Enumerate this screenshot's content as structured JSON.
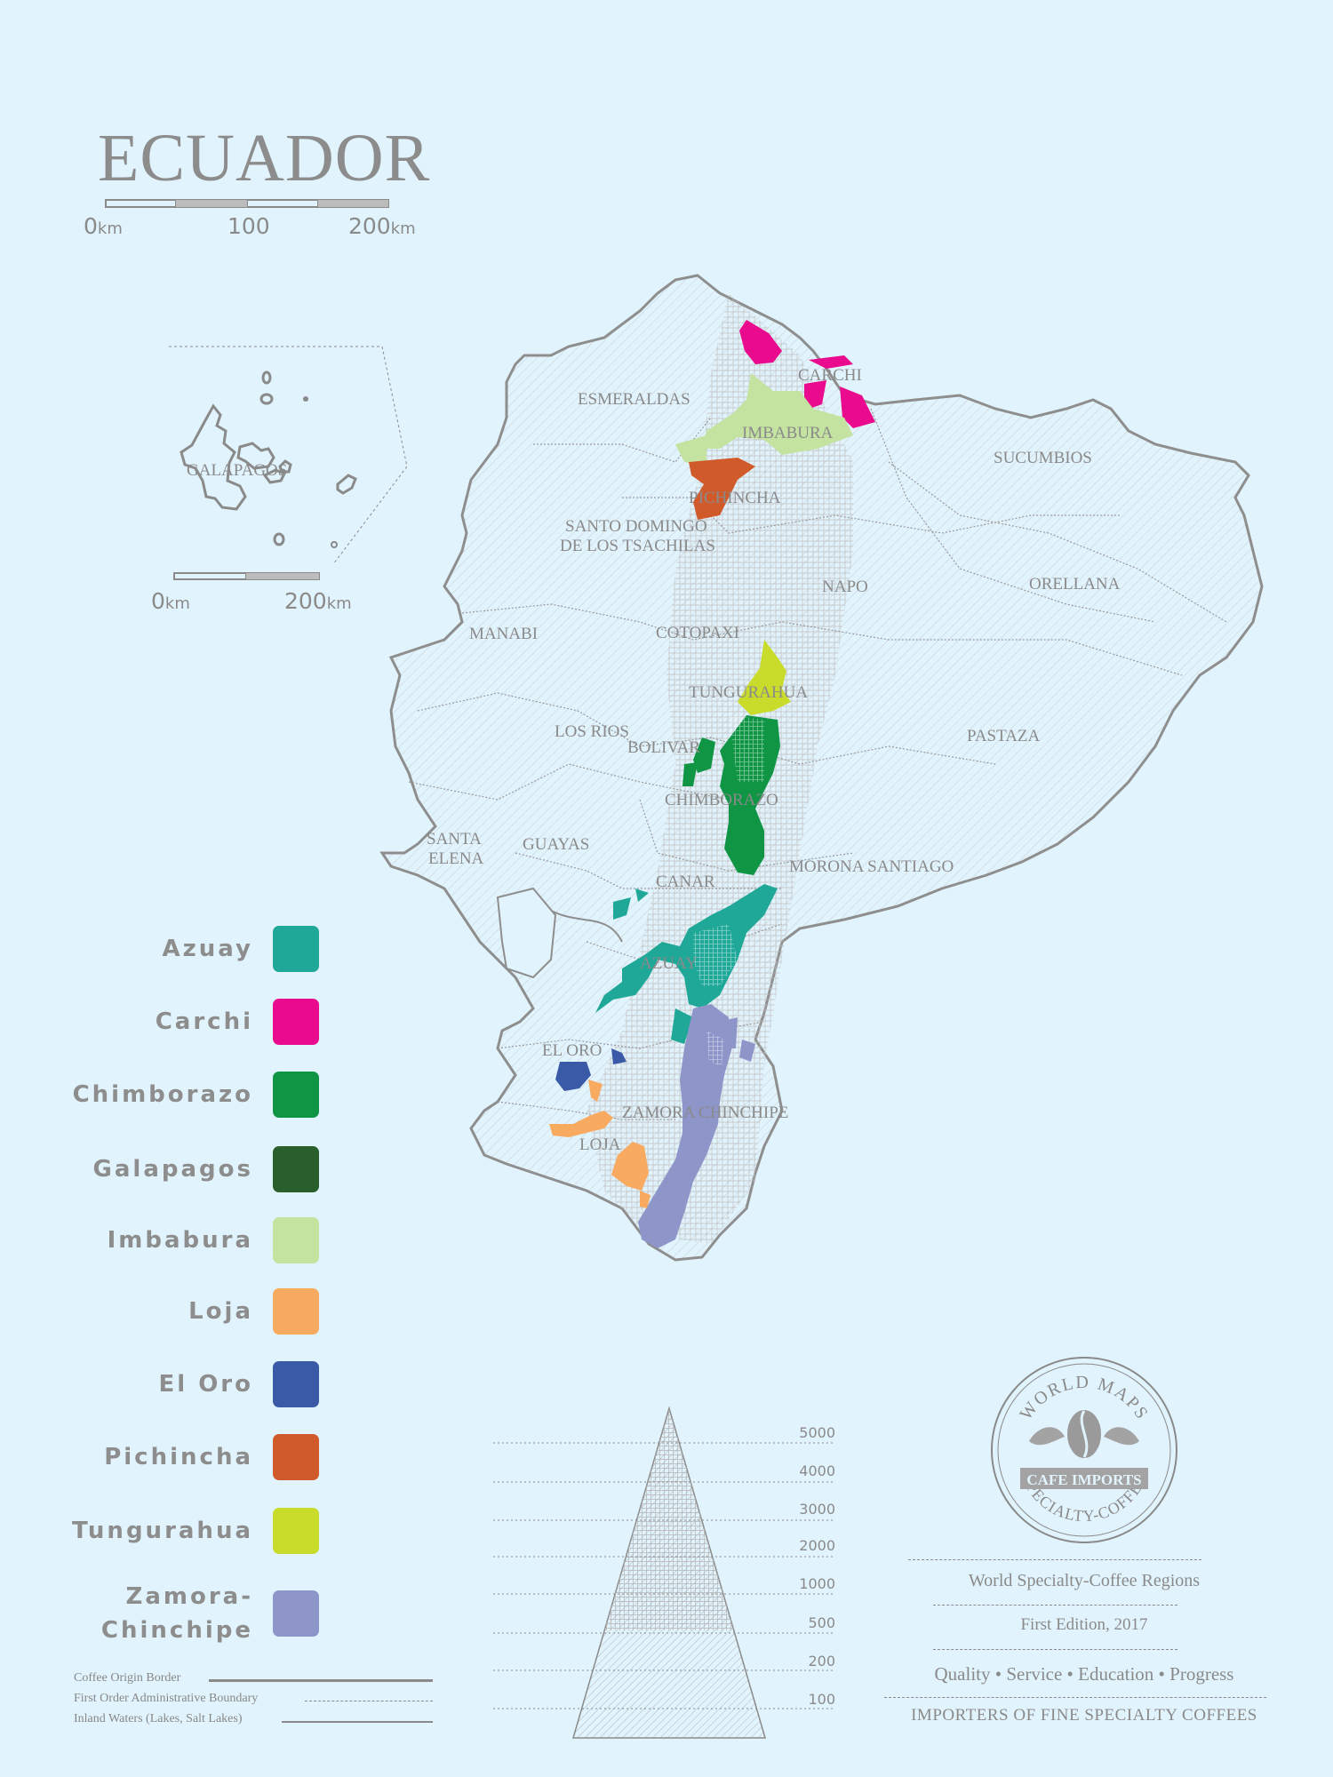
{
  "map": {
    "title": "ECUADOR",
    "scale_main": {
      "start": "0",
      "mid": "100",
      "end": "200",
      "unit": "km"
    },
    "scale_inset": {
      "start": "0",
      "end": "200",
      "unit": "km"
    },
    "inset_label": "GALAPAGOS",
    "provinces": [
      "ESMERALDAS",
      "CARCHI",
      "IMBABURA",
      "SUCUMBIOS",
      "PICHINCHA",
      "SANTO DOMINGO",
      "DE LOS TSACHILAS",
      "NAPO",
      "ORELLANA",
      "MANABI",
      "COTOPAXI",
      "TUNGURAHUA",
      "LOS RIOS",
      "BOLIVAR",
      "PASTAZA",
      "CHIMBORAZO",
      "SANTA",
      "ELENA",
      "GUAYAS",
      "CANAR",
      "MORONA SANTIAGO",
      "AZUAY",
      "EL ORO",
      "ZAMORA CHINCHIPE",
      "LOJA"
    ]
  },
  "legend": [
    {
      "label": "Azuay",
      "color": "#1fa898"
    },
    {
      "label": "Carchi",
      "color": "#ea0a8e"
    },
    {
      "label": "Chimborazo",
      "color": "#0f9544"
    },
    {
      "label": "Galapagos",
      "color": "#2a5e2d"
    },
    {
      "label": "Imbabura",
      "color": "#c4e3a0"
    },
    {
      "label": "Loja",
      "color": "#f9aa61"
    },
    {
      "label": "El Oro",
      "color": "#3a5aa8"
    },
    {
      "label": "Pichincha",
      "color": "#d15a2a"
    },
    {
      "label": "Tungurahua",
      "color": "#c9dc2c"
    },
    {
      "label": "Zamora-\nChinchipe",
      "color": "#8e95c9"
    }
  ],
  "line_key": [
    "Coffee Origin Border",
    "First Order Administrative Boundary",
    "Inland Waters (Lakes, Salt Lakes)"
  ],
  "elevation_labels": [
    "5000",
    "4000",
    "3000",
    "2000",
    "1000",
    "500",
    "200",
    "100"
  ],
  "badge": {
    "top": "WORLD MAPS",
    "center": "CAFE IMPORTS",
    "bottom": "SPECIALTY-COFFEE"
  },
  "info": {
    "line1": "World Specialty-Coffee Regions",
    "line2": "First Edition, 2017",
    "line3": "Quality • Service • Education • Progress",
    "line4": "IMPORTERS OF FINE SPECIALTY COFFEES"
  }
}
